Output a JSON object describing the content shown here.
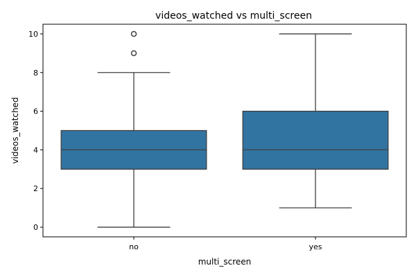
{
  "chart_data": {
    "type": "box",
    "title": "videos_watched vs multi_screen",
    "xlabel": "multi_screen",
    "ylabel": "videos_watched",
    "categories": [
      "no",
      "yes"
    ],
    "yticks": [
      0,
      2,
      4,
      6,
      8,
      10
    ],
    "ytick_labels": [
      "0",
      "2",
      "4",
      "6",
      "8",
      "10"
    ],
    "ylim": [
      -0.5,
      10.5
    ],
    "grid": false,
    "colors": {
      "box_fill": "#3274a1",
      "line": "#3f3f3f"
    },
    "boxes": [
      {
        "category": "no",
        "whisker_low": 0,
        "q1": 3,
        "median": 4,
        "q3": 5,
        "whisker_high": 8,
        "outliers": [
          9,
          10
        ]
      },
      {
        "category": "yes",
        "whisker_low": 1,
        "q1": 3,
        "median": 4,
        "q3": 6,
        "whisker_high": 10,
        "outliers": []
      }
    ]
  }
}
